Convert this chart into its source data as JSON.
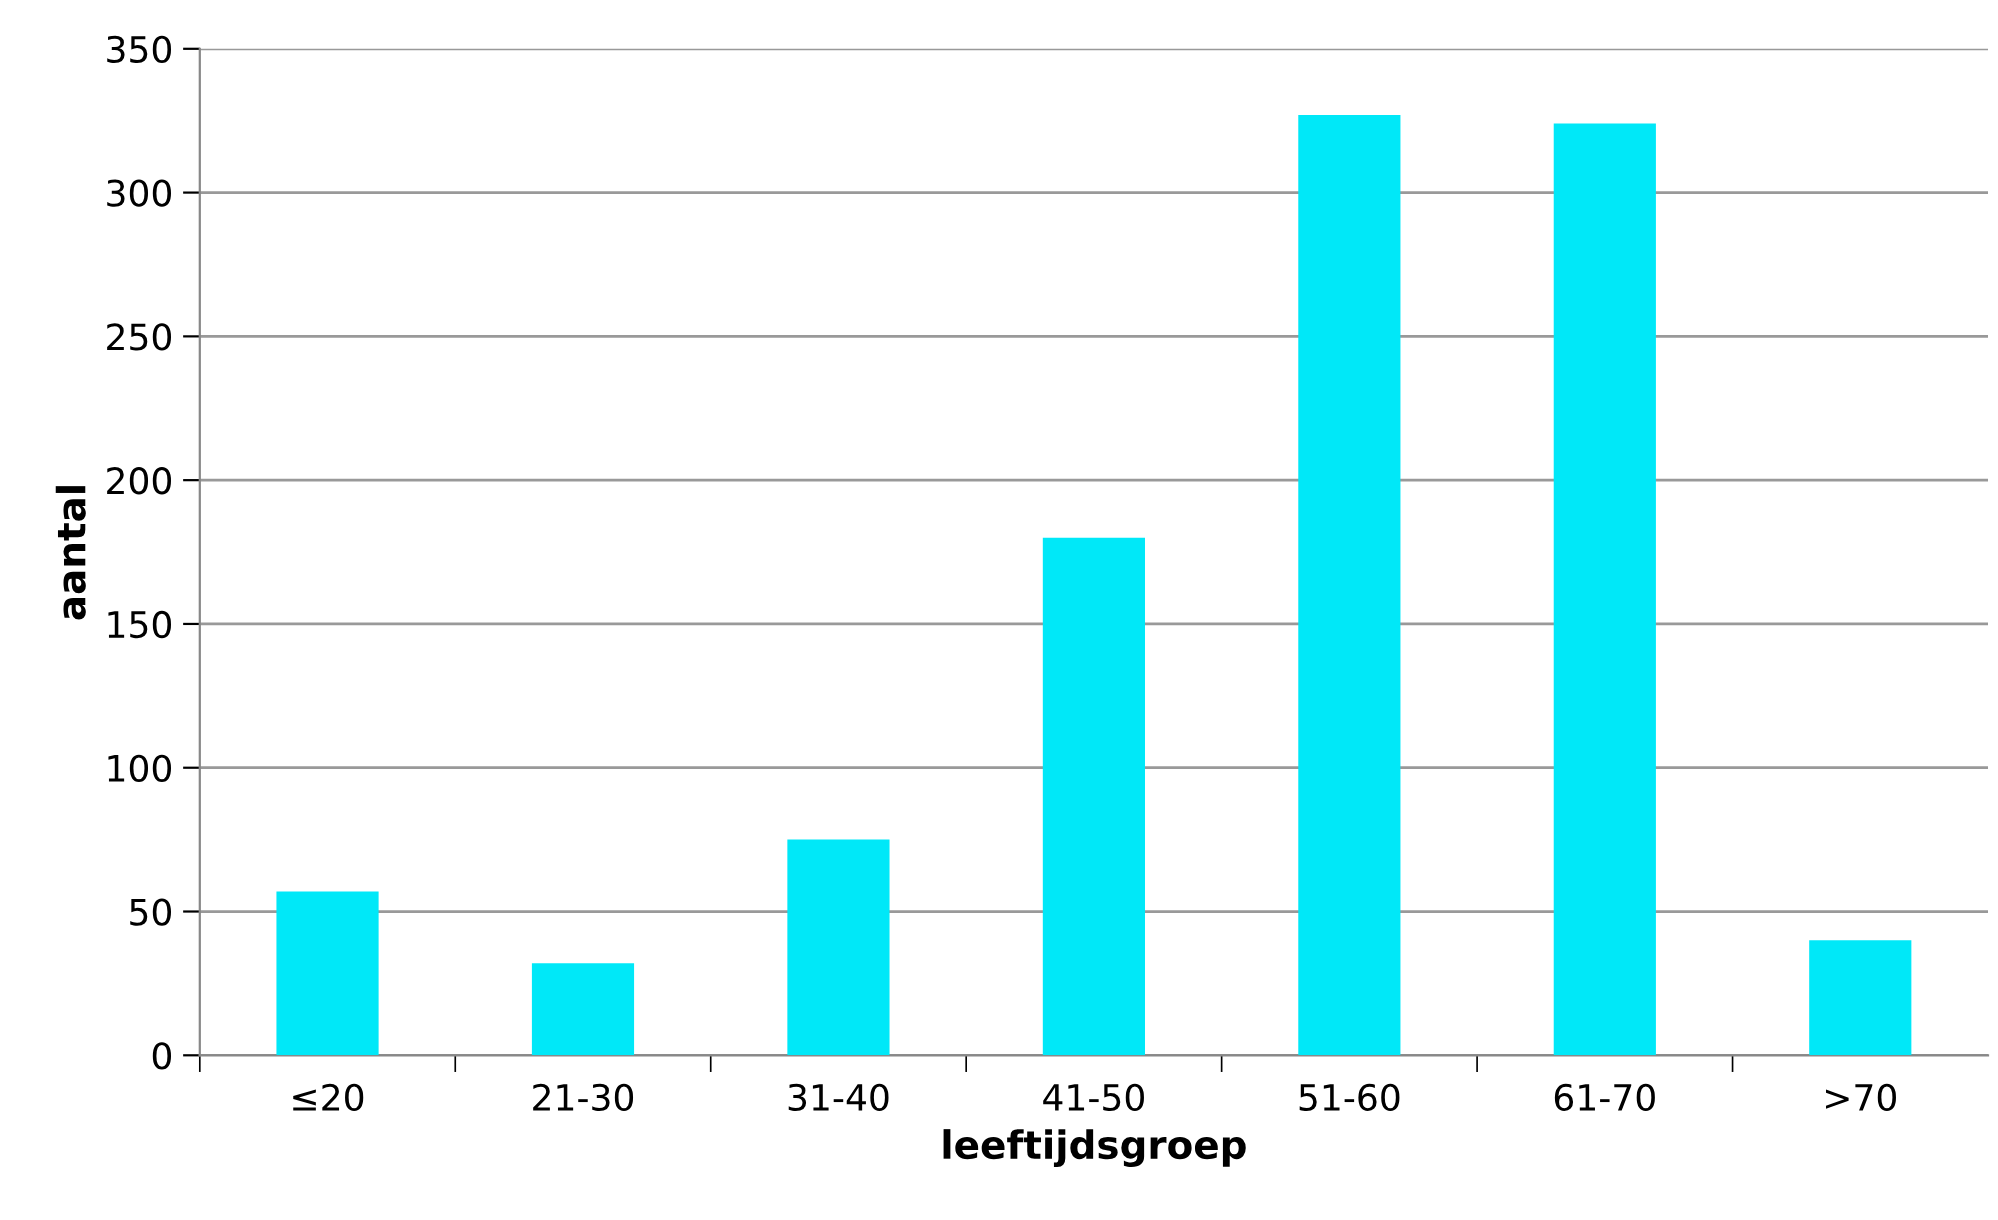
{
  "chart_data": {
    "type": "bar",
    "xlabel": "leeftijdsgroep",
    "ylabel": "aantal",
    "categories": [
      "≤20",
      "21-30",
      "31-40",
      "41-50",
      "51-60",
      "61-70",
      ">70"
    ],
    "values": [
      57,
      32,
      75,
      180,
      327,
      324,
      40
    ],
    "color": "#00e8f8",
    "ylim": [
      0,
      350
    ],
    "yticks": [
      0,
      50,
      100,
      150,
      200,
      250,
      300,
      350
    ],
    "grid": "y",
    "legend": false
  }
}
